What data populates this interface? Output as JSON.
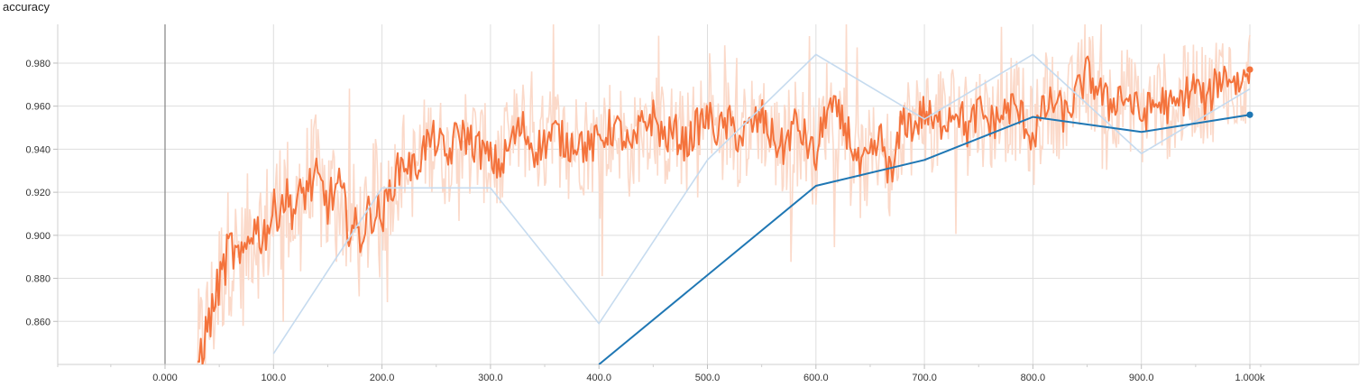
{
  "chart_data": {
    "type": "line",
    "title": "accuracy",
    "xlabel": "",
    "ylabel": "",
    "xlim": [
      -100,
      1010
    ],
    "ylim": [
      0.84,
      0.998
    ],
    "x_ticks": [
      {
        "value": 0,
        "label": "0.000"
      },
      {
        "value": 100,
        "label": "100.0"
      },
      {
        "value": 200,
        "label": "200.0"
      },
      {
        "value": 300,
        "label": "300.0"
      },
      {
        "value": 400,
        "label": "400.0"
      },
      {
        "value": 500,
        "label": "500.0"
      },
      {
        "value": 600,
        "label": "600.0"
      },
      {
        "value": 700,
        "label": "700.0"
      },
      {
        "value": 800,
        "label": "800.0"
      },
      {
        "value": 900,
        "label": "900.0"
      },
      {
        "value": 1000,
        "label": "1.000k"
      }
    ],
    "y_ticks": [
      {
        "value": 0.86,
        "label": "0.860"
      },
      {
        "value": 0.88,
        "label": "0.880"
      },
      {
        "value": 0.9,
        "label": "0.900"
      },
      {
        "value": 0.92,
        "label": "0.920"
      },
      {
        "value": 0.94,
        "label": "0.940"
      },
      {
        "value": 0.96,
        "label": "0.960"
      },
      {
        "value": 0.98,
        "label": "0.980"
      }
    ],
    "grid": true,
    "series": [
      {
        "name": "",
        "color": "#f4733c",
        "raw_color": "#fbd9c9",
        "smoothed": [
          [
            30,
            0.842
          ],
          [
            40,
            0.858
          ],
          [
            50,
            0.878
          ],
          [
            60,
            0.895
          ],
          [
            70,
            0.885
          ],
          [
            80,
            0.905
          ],
          [
            90,
            0.9
          ],
          [
            100,
            0.91
          ],
          [
            110,
            0.918
          ],
          [
            120,
            0.912
          ],
          [
            130,
            0.922
          ],
          [
            140,
            0.925
          ],
          [
            150,
            0.915
          ],
          [
            160,
            0.922
          ],
          [
            170,
            0.905
          ],
          [
            180,
            0.9
          ],
          [
            190,
            0.912
          ],
          [
            200,
            0.908
          ],
          [
            210,
            0.925
          ],
          [
            220,
            0.935
          ],
          [
            230,
            0.93
          ],
          [
            240,
            0.942
          ],
          [
            250,
            0.945
          ],
          [
            260,
            0.935
          ],
          [
            270,
            0.948
          ],
          [
            280,
            0.945
          ],
          [
            290,
            0.94
          ],
          [
            300,
            0.935
          ],
          [
            310,
            0.932
          ],
          [
            320,
            0.945
          ],
          [
            330,
            0.95
          ],
          [
            340,
            0.94
          ],
          [
            350,
            0.943
          ],
          [
            360,
            0.948
          ],
          [
            370,
            0.942
          ],
          [
            380,
            0.945
          ],
          [
            390,
            0.94
          ],
          [
            400,
            0.944
          ],
          [
            410,
            0.95
          ],
          [
            420,
            0.948
          ],
          [
            430,
            0.938
          ],
          [
            440,
            0.952
          ],
          [
            450,
            0.955
          ],
          [
            460,
            0.945
          ],
          [
            470,
            0.948
          ],
          [
            480,
            0.942
          ],
          [
            490,
            0.95
          ],
          [
            500,
            0.955
          ],
          [
            510,
            0.948
          ],
          [
            520,
            0.952
          ],
          [
            530,
            0.945
          ],
          [
            540,
            0.95
          ],
          [
            550,
            0.955
          ],
          [
            560,
            0.945
          ],
          [
            570,
            0.94
          ],
          [
            580,
            0.952
          ],
          [
            590,
            0.945
          ],
          [
            600,
            0.935
          ],
          [
            610,
            0.96
          ],
          [
            620,
            0.955
          ],
          [
            630,
            0.948
          ],
          [
            640,
            0.93
          ],
          [
            650,
            0.935
          ],
          [
            660,
            0.945
          ],
          [
            670,
            0.925
          ],
          [
            680,
            0.955
          ],
          [
            690,
            0.95
          ],
          [
            700,
            0.958
          ],
          [
            710,
            0.95
          ],
          [
            720,
            0.955
          ],
          [
            730,
            0.96
          ],
          [
            740,
            0.948
          ],
          [
            750,
            0.958
          ],
          [
            760,
            0.952
          ],
          [
            770,
            0.955
          ],
          [
            780,
            0.96
          ],
          [
            790,
            0.955
          ],
          [
            800,
            0.945
          ],
          [
            810,
            0.958
          ],
          [
            820,
            0.962
          ],
          [
            830,
            0.955
          ],
          [
            840,
            0.965
          ],
          [
            850,
            0.975
          ],
          [
            860,
            0.968
          ],
          [
            870,
            0.96
          ],
          [
            880,
            0.966
          ],
          [
            890,
            0.962
          ],
          [
            900,
            0.955
          ],
          [
            910,
            0.96
          ],
          [
            920,
            0.962
          ],
          [
            930,
            0.958
          ],
          [
            940,
            0.965
          ],
          [
            950,
            0.97
          ],
          [
            960,
            0.96
          ],
          [
            970,
            0.972
          ],
          [
            980,
            0.975
          ],
          [
            990,
            0.97
          ],
          [
            1000,
            0.977
          ]
        ]
      },
      {
        "name": "",
        "color": "#1f77b4",
        "raw_color": "#c6dbef",
        "smoothed": [
          [
            400,
            0.84
          ],
          [
            600,
            0.923
          ],
          [
            700,
            0.935
          ],
          [
            800,
            0.955
          ],
          [
            900,
            0.948
          ],
          [
            1000,
            0.956
          ]
        ],
        "raw": [
          [
            100,
            0.845
          ],
          [
            200,
            0.922
          ],
          [
            300,
            0.922
          ],
          [
            400,
            0.859
          ],
          [
            500,
            0.935
          ],
          [
            600,
            0.984
          ],
          [
            700,
            0.954
          ],
          [
            800,
            0.984
          ],
          [
            900,
            0.938
          ],
          [
            1000,
            0.968
          ]
        ]
      }
    ]
  }
}
